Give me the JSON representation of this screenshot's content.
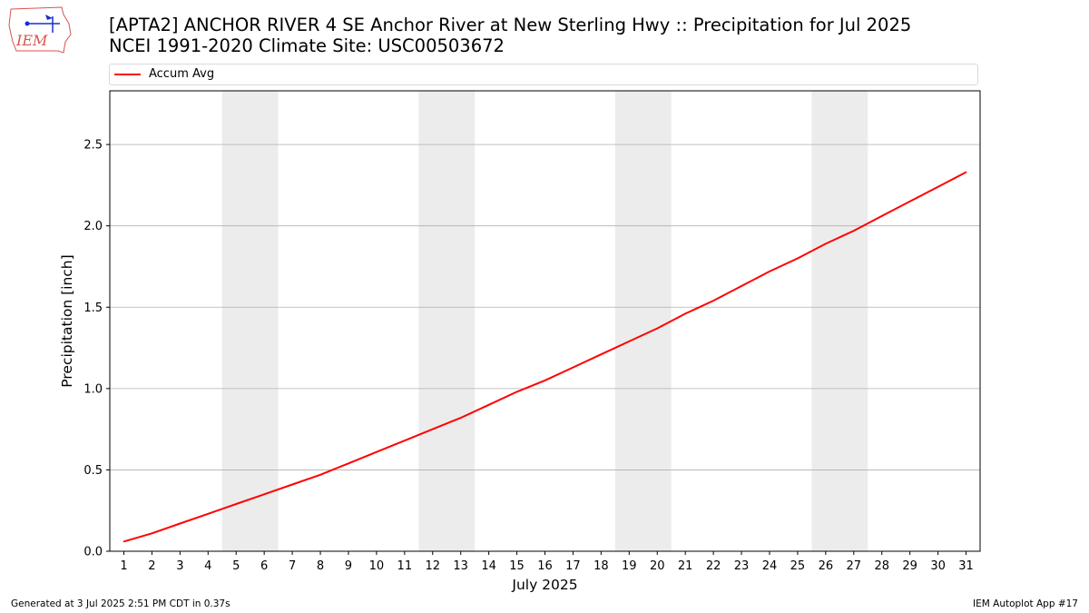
{
  "header": {
    "logo_text": "IEM",
    "title_line1": "[APTA2] ANCHOR RIVER 4 SE Anchor River at New Sterling Hwy :: Precipitation for Jul 2025",
    "title_line2": "NCEI 1991-2020 Climate Site: USC00503672"
  },
  "legend": {
    "placement": "top",
    "items": [
      {
        "label": "Accum Avg",
        "color": "#ff0000"
      }
    ]
  },
  "footer": {
    "generated": "Generated at 3 Jul 2025 2:51 PM CDT in 0.37s",
    "app": "IEM Autoplot App #17"
  },
  "colors": {
    "line": "#ff0000",
    "weekend_shade": "#ececec",
    "grid": "#b0b0b0"
  },
  "chart_data": {
    "type": "line",
    "xlabel": "July 2025",
    "ylabel": "Precipitation [inch]",
    "xlim": [
      0.5,
      31.5
    ],
    "ylim": [
      0,
      2.83
    ],
    "yticks": [
      0.0,
      0.5,
      1.0,
      1.5,
      2.0,
      2.5
    ],
    "ytick_labels": [
      "0.0",
      "0.5",
      "1.0",
      "1.5",
      "2.0",
      "2.5"
    ],
    "x": [
      1,
      2,
      3,
      4,
      5,
      6,
      7,
      8,
      9,
      10,
      11,
      12,
      13,
      14,
      15,
      16,
      17,
      18,
      19,
      20,
      21,
      22,
      23,
      24,
      25,
      26,
      27,
      28,
      29,
      30,
      31
    ],
    "shaded_days": [
      [
        5,
        6
      ],
      [
        12,
        13
      ],
      [
        19,
        20
      ],
      [
        26,
        27
      ]
    ],
    "grid": "horizontal",
    "series": [
      {
        "name": "Accum Avg",
        "values": [
          0.06,
          0.11,
          0.17,
          0.23,
          0.29,
          0.35,
          0.41,
          0.47,
          0.54,
          0.61,
          0.68,
          0.75,
          0.82,
          0.9,
          0.98,
          1.05,
          1.13,
          1.21,
          1.29,
          1.37,
          1.46,
          1.54,
          1.63,
          1.72,
          1.8,
          1.89,
          1.97,
          2.06,
          2.15,
          2.24,
          2.33
        ]
      }
    ]
  }
}
